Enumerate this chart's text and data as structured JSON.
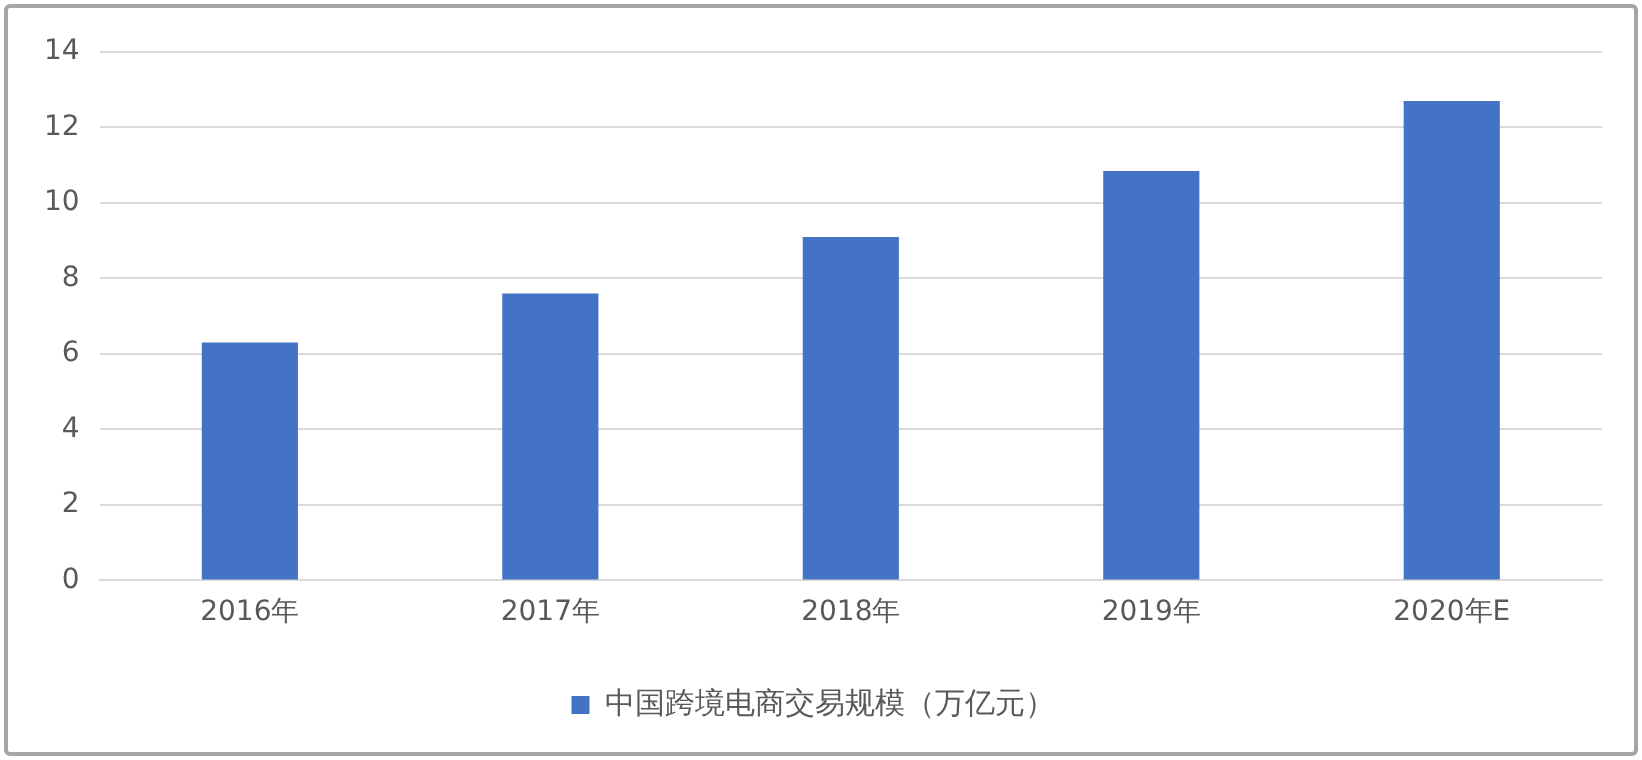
{
  "chart_data": {
    "type": "bar",
    "categories": [
      "2016年",
      "2017年",
      "2018年",
      "2019年",
      "2020年E"
    ],
    "series": [
      {
        "name": "中国跨境电商交易规模（万亿元）",
        "color": "#4472c4",
        "values": [
          6.3,
          7.6,
          9.1,
          10.85,
          12.7
        ]
      }
    ],
    "ylim": [
      0,
      14
    ],
    "yticks": [
      0,
      2,
      4,
      6,
      8,
      10,
      12,
      14
    ],
    "grid": "y",
    "legend": "bottom"
  }
}
